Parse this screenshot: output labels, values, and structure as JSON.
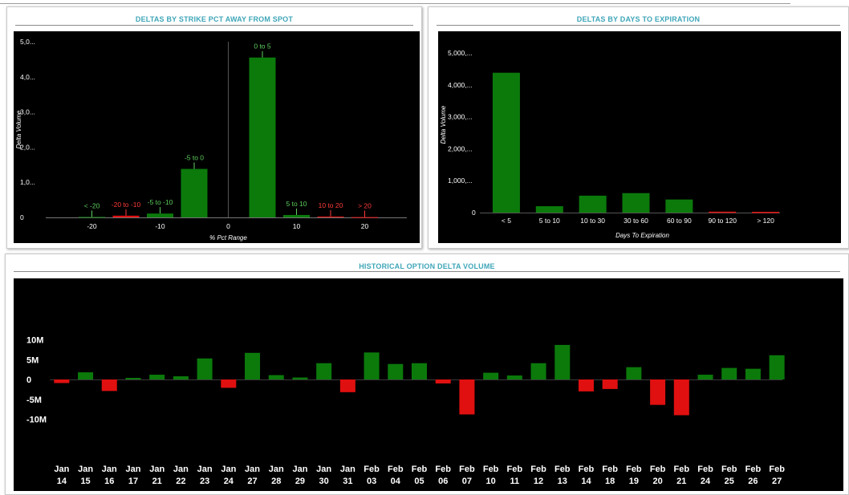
{
  "panels": {
    "strike": {
      "title": "DELTAS BY STRIKE PCT AWAY FROM SPOT"
    },
    "days": {
      "title": "DELTAS BY DAYS TO EXPIRATION"
    },
    "history": {
      "title": "HISTORICAL OPTION DELTA VOLUME"
    }
  },
  "colors": {
    "positive": "#0b7a0b",
    "negative": "#e01010",
    "label_positive": "#5fcf5f",
    "label_negative": "#ff3a3a",
    "title": "#3fa6b8"
  },
  "chart_data": [
    {
      "id": "strike",
      "type": "bar",
      "xlabel": "% Pct Range",
      "ylabel": "Delta Volume",
      "yticks": [
        "0",
        "1,0...",
        "2,0...",
        "3,0...",
        "4,0...",
        "5,0..."
      ],
      "ylim": [
        0,
        5000
      ],
      "xlim": [
        -25,
        25
      ],
      "xticks": [
        "-20",
        "-10",
        "0",
        "10",
        "20"
      ],
      "xtick_values": [
        -20,
        -10,
        0,
        10,
        20
      ],
      "bars": [
        {
          "label": "< -20",
          "x": -20,
          "value": 15,
          "sign": "positive"
        },
        {
          "label": "-20 to -10",
          "x": -15,
          "value": 50,
          "sign": "negative"
        },
        {
          "label": "-5 to -10",
          "x": -10,
          "value": 110,
          "sign": "positive"
        },
        {
          "label": "-5 to 0",
          "x": -5,
          "value": 1380,
          "sign": "positive"
        },
        {
          "label": "0 to 5",
          "x": 5,
          "value": 4550,
          "sign": "positive"
        },
        {
          "label": "5 to 10",
          "x": 10,
          "value": 70,
          "sign": "positive"
        },
        {
          "label": "10 to 20",
          "x": 15,
          "value": 25,
          "sign": "negative"
        },
        {
          "label": "> 20",
          "x": 20,
          "value": 10,
          "sign": "negative"
        }
      ]
    },
    {
      "id": "days",
      "type": "bar",
      "xlabel": "Days To Expiration",
      "ylabel": "Delta Volume",
      "yticks": [
        "0",
        "1,000,...",
        "2,000,...",
        "3,000,...",
        "4,000,...",
        "5,000,..."
      ],
      "ylim": [
        0,
        5000
      ],
      "categories": [
        "< 5",
        "5 to 10",
        "10 to 30",
        "30 to 60",
        "60 to 90",
        "90 to 120",
        "> 120"
      ],
      "values": [
        4380,
        200,
        530,
        610,
        410,
        30,
        25
      ],
      "signs": [
        "positive",
        "positive",
        "positive",
        "positive",
        "positive",
        "negative",
        "negative"
      ]
    },
    {
      "id": "history",
      "type": "bar",
      "ylabel": "",
      "yticks": [
        "-10M",
        "-5M",
        "0",
        "5M",
        "10M"
      ],
      "ylim": [
        -10,
        10
      ],
      "categories": [
        [
          "Jan",
          "14"
        ],
        [
          "Jan",
          "15"
        ],
        [
          "Jan",
          "16"
        ],
        [
          "Jan",
          "17"
        ],
        [
          "Jan",
          "21"
        ],
        [
          "Jan",
          "22"
        ],
        [
          "Jan",
          "23"
        ],
        [
          "Jan",
          "24"
        ],
        [
          "Jan",
          "27"
        ],
        [
          "Jan",
          "28"
        ],
        [
          "Jan",
          "29"
        ],
        [
          "Jan",
          "30"
        ],
        [
          "Jan",
          "31"
        ],
        [
          "Feb",
          "03"
        ],
        [
          "Feb",
          "04"
        ],
        [
          "Feb",
          "05"
        ],
        [
          "Feb",
          "06"
        ],
        [
          "Feb",
          "07"
        ],
        [
          "Feb",
          "10"
        ],
        [
          "Feb",
          "11"
        ],
        [
          "Feb",
          "12"
        ],
        [
          "Feb",
          "13"
        ],
        [
          "Feb",
          "14"
        ],
        [
          "Feb",
          "18"
        ],
        [
          "Feb",
          "19"
        ],
        [
          "Feb",
          "20"
        ],
        [
          "Feb",
          "21"
        ],
        [
          "Feb",
          "24"
        ],
        [
          "Feb",
          "25"
        ],
        [
          "Feb",
          "26"
        ],
        [
          "Feb",
          "27"
        ]
      ],
      "values": [
        -0.9,
        1.8,
        -2.9,
        0.4,
        1.2,
        0.8,
        5.3,
        -2.1,
        6.7,
        1.1,
        0.5,
        4.1,
        -3.2,
        6.8,
        3.9,
        4.1,
        -1.0,
        -8.8,
        1.7,
        1.0,
        4.1,
        8.7,
        -3.0,
        -2.4,
        3.1,
        -6.4,
        -9.0,
        1.2,
        2.9,
        2.7,
        6.1
      ]
    }
  ]
}
